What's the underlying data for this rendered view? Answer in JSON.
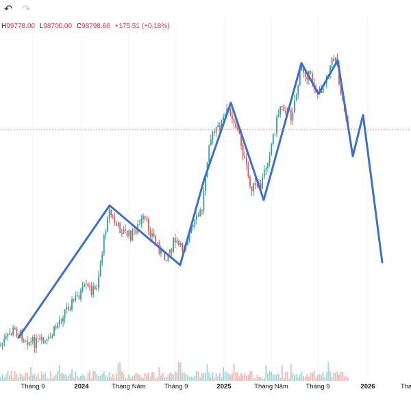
{
  "toolbar": {
    "undo_icon": "undo-icon",
    "redo_icon": "redo-icon"
  },
  "ohlc": {
    "high_key": "H",
    "high": "99778.00",
    "low_key": "L",
    "low": "98700.00",
    "close_key": "C",
    "close": "98798.66",
    "change": "+175.51 (+0.18%)"
  },
  "colors": {
    "up": "#26a69a",
    "down": "#ef5350",
    "drawing": "#3c6fd0",
    "price_line": "#e08aa8",
    "ohlc_text": "#f23645"
  },
  "time_axis": {
    "ticks": [
      {
        "label": "Tháng 9",
        "year": false
      },
      {
        "label": "2024",
        "year": true
      },
      {
        "label": "Tháng Năm",
        "year": false
      },
      {
        "label": "Tháng 9",
        "year": false
      },
      {
        "label": "2025",
        "year": true
      },
      {
        "label": "Tháng Năm",
        "year": false
      },
      {
        "label": "Tháng 9",
        "year": false
      },
      {
        "label": "2026",
        "year": true
      },
      {
        "label": "Thá",
        "year": false
      }
    ]
  }
}
